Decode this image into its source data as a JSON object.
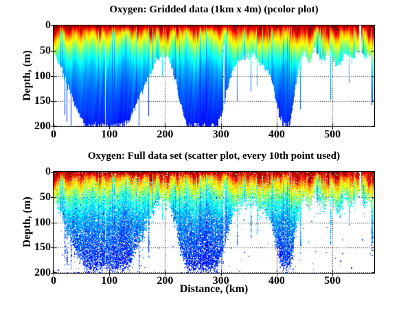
{
  "figure": {
    "background": "#ffffff",
    "text_color": "#000000",
    "axis_color": "#000000",
    "grid_style": "dotted"
  },
  "chart_data": [
    {
      "type": "pcolor",
      "title": "Oxygen: Gridded data (1km x 4m) (pcolor plot)",
      "xlabel": "",
      "ylabel": "Depth, (m)",
      "xlim": [
        0,
        575
      ],
      "ylim": [
        0,
        200
      ],
      "y_axis_reversed": true,
      "xticks": [
        0,
        100,
        200,
        300,
        400,
        500
      ],
      "yticks": [
        0,
        50,
        100,
        150,
        200
      ],
      "grid": "on",
      "colormap": "jet"
    },
    {
      "type": "scatter",
      "title": "Oxygen: Full data set (scatter plot, every 10th point used)",
      "xlabel": "Distance, (km)",
      "ylabel": "Depth, (m)",
      "xlim": [
        0,
        575
      ],
      "ylim": [
        0,
        200
      ],
      "y_axis_reversed": true,
      "xticks": [
        0,
        100,
        200,
        300,
        400,
        500
      ],
      "yticks": [
        0,
        50,
        100,
        150,
        200
      ],
      "grid": "on",
      "colormap": "jet",
      "marker_size_px": 1.5
    }
  ],
  "oxygen_section": {
    "description": "Jet-colormap oxygen section: high (dark red) at surface, decreasing (yellow, cyan, blue) with depth; white = no data below seafloor",
    "jet_anchor_colors": [
      "#00008f",
      "#0000ff",
      "#00ffff",
      "#ffff00",
      "#ff0000",
      "#800000"
    ],
    "bathymetry_km": [
      0,
      5,
      10,
      15,
      20,
      25,
      30,
      35,
      40,
      45,
      50,
      55,
      60,
      65,
      70,
      75,
      80,
      85,
      90,
      95,
      100,
      105,
      110,
      115,
      120,
      125,
      130,
      135,
      140,
      145,
      150,
      155,
      160,
      165,
      170,
      175,
      180,
      185,
      190,
      195,
      200,
      205,
      210,
      215,
      220,
      225,
      230,
      235,
      240,
      245,
      250,
      255,
      260,
      265,
      270,
      275,
      280,
      285,
      290,
      295,
      300,
      305,
      310,
      315,
      320,
      325,
      330,
      335,
      340,
      345,
      350,
      355,
      360,
      365,
      370,
      375,
      380,
      385,
      390,
      395,
      400,
      405,
      410,
      415,
      420,
      425,
      430,
      435,
      440,
      445,
      450,
      455,
      460,
      465,
      470,
      475,
      480,
      485,
      490,
      495,
      500,
      505,
      510,
      515,
      520,
      525,
      530,
      535,
      540,
      545,
      550,
      555,
      560,
      565,
      570,
      575
    ],
    "seafloor_depth_m": [
      45,
      58,
      72,
      88,
      103,
      118,
      128,
      150,
      158,
      170,
      182,
      193,
      200,
      198,
      200,
      196,
      200,
      200,
      197,
      200,
      200,
      196,
      200,
      198,
      200,
      197,
      193,
      186,
      176,
      163,
      150,
      139,
      126,
      114,
      100,
      89,
      76,
      67,
      60,
      56,
      58,
      64,
      76,
      94,
      114,
      139,
      164,
      184,
      196,
      200,
      198,
      196,
      200,
      199,
      196,
      200,
      200,
      197,
      200,
      191,
      184,
      162,
      133,
      110,
      92,
      80,
      71,
      65,
      62,
      60,
      58,
      56,
      60,
      68,
      74,
      79,
      84,
      90,
      101,
      128,
      154,
      178,
      192,
      196,
      194,
      190,
      152,
      112,
      78,
      60,
      52,
      63,
      70,
      48,
      42,
      56,
      74,
      67,
      56,
      49,
      64,
      74,
      80,
      71,
      60,
      52,
      57,
      70,
      57,
      50,
      52,
      56,
      64,
      57,
      52,
      47
    ],
    "value_profile_depth_m": [
      0,
      5,
      10,
      16,
      24,
      33,
      44,
      56,
      70,
      88,
      110,
      140,
      200
    ],
    "value_profile_jet": [
      0.97,
      0.92,
      0.84,
      0.75,
      0.67,
      0.6,
      0.52,
      0.44,
      0.38,
      0.31,
      0.26,
      0.21,
      0.15
    ],
    "data_gaps_km": [
      [
        548,
        552
      ]
    ]
  }
}
